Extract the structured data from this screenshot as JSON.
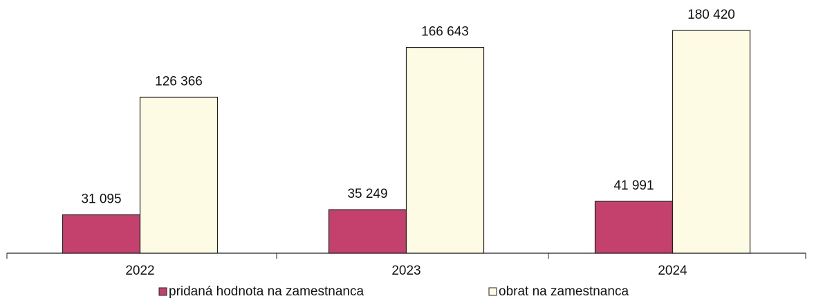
{
  "chart_data": {
    "type": "bar",
    "categories": [
      "2022",
      "2023",
      "2024"
    ],
    "series": [
      {
        "name": "pridaná hodnota na zamestnanca",
        "color": "#c4416d",
        "values": [
          31095,
          35249,
          41991
        ],
        "value_labels": [
          "31 095",
          "35 249",
          "41 991"
        ]
      },
      {
        "name": "obrat na zamestnanca",
        "color": "#fdfbe4",
        "values": [
          126366,
          166643,
          180420
        ],
        "value_labels": [
          "126 366",
          "166 643",
          "180 420"
        ]
      }
    ],
    "legend": "bottom"
  }
}
